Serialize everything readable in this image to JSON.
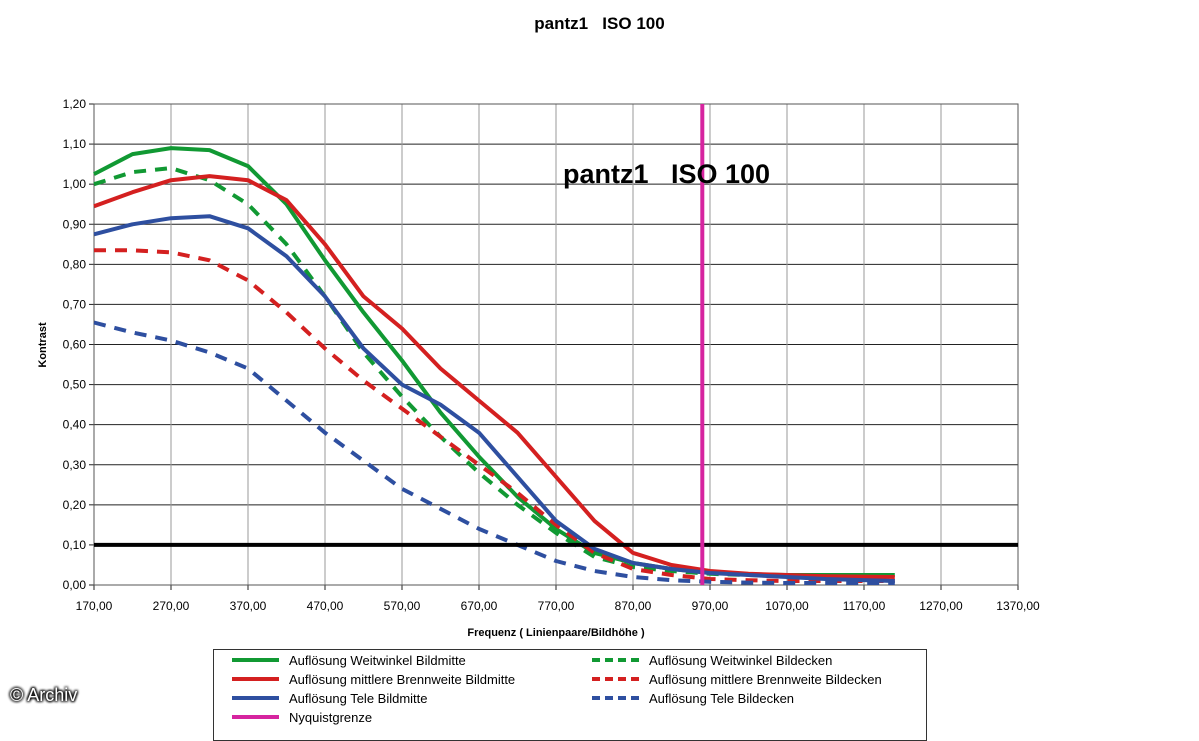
{
  "watermark": "© Archiv",
  "chart_data": {
    "type": "line",
    "title": "pantz1   ISO 100",
    "inner_title": "pantz1   ISO 100",
    "xlabel": "Frequenz ( Linienpaare/Bildhöhe )",
    "ylabel": "Kontrast",
    "xlim": [
      170,
      1370
    ],
    "ylim": [
      0,
      1.2
    ],
    "x_ticks": [
      "170,00",
      "270,00",
      "370,00",
      "470,00",
      "570,00",
      "670,00",
      "770,00",
      "870,00",
      "970,00",
      "1070,00",
      "1170,00",
      "1270,00",
      "1370,00"
    ],
    "y_ticks": [
      "0,00",
      "0,10",
      "0,20",
      "0,30",
      "0,40",
      "0,50",
      "0,60",
      "0,70",
      "0,80",
      "0,90",
      "1,00",
      "1,10",
      "1,20"
    ],
    "grid": true,
    "legend_position": "bottom",
    "reference_lines": [
      {
        "orientation": "horizontal",
        "y": 0.1,
        "color": "#000000"
      },
      {
        "orientation": "vertical",
        "x": 960,
        "color": "#d6249f",
        "name": "Nyquistgrenze"
      }
    ],
    "series": [
      {
        "name": "Auflösung Weitwinkel Bildmitte",
        "color": "#119933",
        "dash": false,
        "x": [
          170,
          220,
          270,
          320,
          370,
          420,
          470,
          520,
          570,
          620,
          670,
          720,
          770,
          820,
          870,
          920,
          970,
          1020,
          1070,
          1120,
          1210
        ],
        "y": [
          1.025,
          1.075,
          1.09,
          1.085,
          1.045,
          0.95,
          0.81,
          0.68,
          0.56,
          0.43,
          0.32,
          0.22,
          0.14,
          0.08,
          0.055,
          0.04,
          0.03,
          0.027,
          0.025,
          0.025,
          0.025
        ]
      },
      {
        "name": "Auflösung Weitwinkel Bildecken",
        "color": "#119933",
        "dash": true,
        "x": [
          170,
          220,
          270,
          320,
          370,
          420,
          470,
          520,
          570,
          620,
          670,
          720,
          770,
          820,
          870,
          920,
          970,
          1020,
          1070,
          1120,
          1210
        ],
        "y": [
          1.0,
          1.03,
          1.04,
          1.01,
          0.95,
          0.85,
          0.72,
          0.58,
          0.47,
          0.37,
          0.28,
          0.2,
          0.13,
          0.07,
          0.045,
          0.035,
          0.028,
          0.025,
          0.022,
          0.02,
          0.02
        ]
      },
      {
        "name": "Auflösung mittlere Brennweite Bildmitte",
        "color": "#d42020",
        "dash": false,
        "x": [
          170,
          220,
          270,
          320,
          370,
          420,
          470,
          520,
          570,
          620,
          670,
          720,
          770,
          820,
          870,
          920,
          970,
          1020,
          1070,
          1120,
          1210
        ],
        "y": [
          0.945,
          0.98,
          1.01,
          1.02,
          1.01,
          0.96,
          0.85,
          0.72,
          0.64,
          0.54,
          0.46,
          0.38,
          0.27,
          0.16,
          0.08,
          0.05,
          0.035,
          0.028,
          0.025,
          0.022,
          0.02
        ]
      },
      {
        "name": "Auflösung mittlere Brennweite Bildecken",
        "color": "#d42020",
        "dash": true,
        "x": [
          170,
          220,
          270,
          320,
          370,
          420,
          470,
          520,
          570,
          620,
          670,
          720,
          770,
          820,
          870,
          920,
          970,
          1020,
          1070,
          1120,
          1210
        ],
        "y": [
          0.835,
          0.835,
          0.83,
          0.81,
          0.76,
          0.68,
          0.59,
          0.51,
          0.44,
          0.37,
          0.3,
          0.23,
          0.15,
          0.08,
          0.04,
          0.025,
          0.015,
          0.012,
          0.01,
          0.01,
          0.01
        ]
      },
      {
        "name": "Auflösung Tele Bildmitte",
        "color": "#2e4fa0",
        "dash": false,
        "x": [
          170,
          220,
          270,
          320,
          370,
          420,
          470,
          520,
          570,
          620,
          670,
          720,
          770,
          820,
          870,
          920,
          970,
          1020,
          1070,
          1120,
          1210
        ],
        "y": [
          0.875,
          0.9,
          0.915,
          0.92,
          0.89,
          0.82,
          0.72,
          0.59,
          0.5,
          0.45,
          0.38,
          0.27,
          0.16,
          0.09,
          0.055,
          0.04,
          0.03,
          0.025,
          0.02,
          0.015,
          0.01
        ]
      },
      {
        "name": "Auflösung Tele Bildecken",
        "color": "#2e4fa0",
        "dash": true,
        "x": [
          170,
          220,
          270,
          320,
          370,
          420,
          470,
          520,
          570,
          620,
          670,
          720,
          770,
          820,
          870,
          920,
          970,
          1020,
          1070,
          1120,
          1210
        ],
        "y": [
          0.655,
          0.63,
          0.61,
          0.58,
          0.54,
          0.46,
          0.38,
          0.31,
          0.24,
          0.19,
          0.14,
          0.1,
          0.06,
          0.035,
          0.02,
          0.012,
          0.008,
          0.006,
          0.005,
          0.005,
          0.005
        ]
      },
      {
        "name": "Nyquistgrenze",
        "color": "#d6249f",
        "dash": false,
        "x": [
          960,
          960
        ],
        "y": [
          0,
          1.2
        ]
      }
    ]
  }
}
